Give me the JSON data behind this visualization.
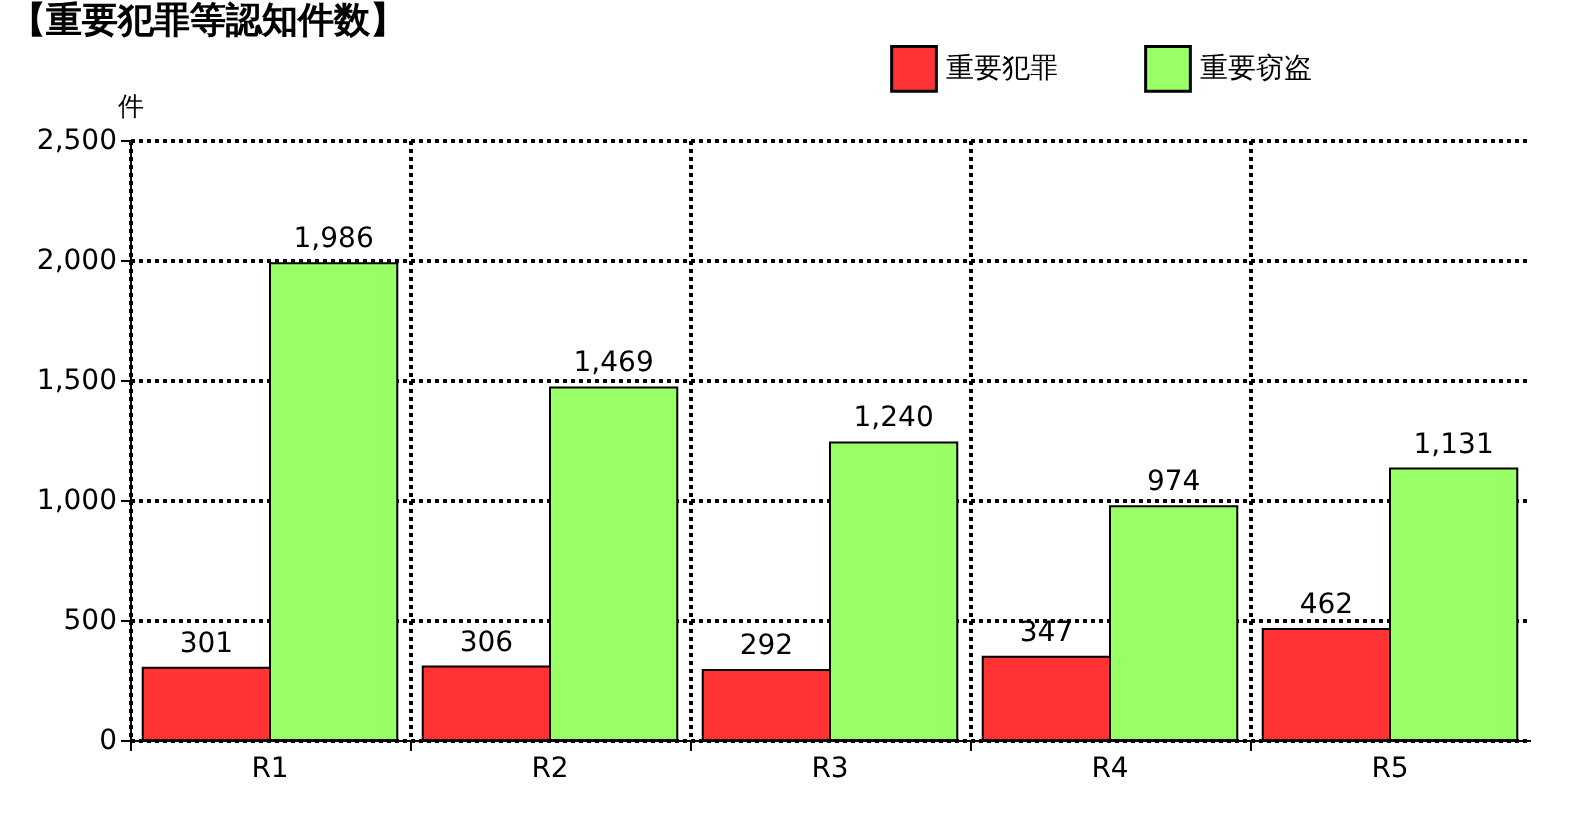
{
  "chart_data": {
    "type": "bar",
    "title": "【重要犯罪等認知件数】",
    "ylabel": "件",
    "categories": [
      "R1",
      "R2",
      "R3",
      "R4",
      "R5"
    ],
    "series": [
      {
        "name": "重要犯罪",
        "color": "#ff3333",
        "values": [
          301,
          306,
          292,
          347,
          462
        ],
        "value_labels": [
          "301",
          "306",
          "292",
          "347",
          "462"
        ]
      },
      {
        "name": "重要窃盗",
        "color": "#99ff66",
        "values": [
          1986,
          1469,
          1240,
          974,
          1131
        ],
        "value_labels": [
          "1,986",
          "1,469",
          "1,240",
          "974",
          "1,131"
        ]
      }
    ],
    "ylim": [
      0,
      2500
    ],
    "yticks": [
      0,
      500,
      {
        "value": 1000,
        "label": "1,000"
      },
      {
        "value": 1500,
        "label": "1,500"
      },
      {
        "value": 2000,
        "label": "2,000"
      },
      {
        "value": 2500,
        "label": "2,500"
      }
    ],
    "grid": true,
    "legend": "top right"
  }
}
